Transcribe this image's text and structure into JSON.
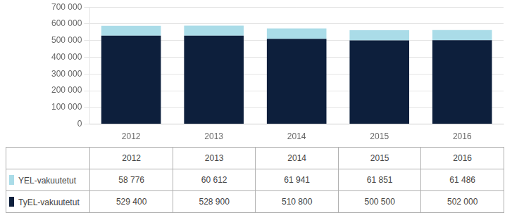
{
  "chart_data": {
    "type": "bar",
    "stacked": true,
    "grid": true,
    "categories": [
      "2012",
      "2013",
      "2014",
      "2015",
      "2016"
    ],
    "series": [
      {
        "name": "TyEL-vakuutetut",
        "color": "#0d1f3c",
        "values": [
          529400,
          528900,
          510800,
          500500,
          502000
        ],
        "value_labels": [
          "529 400",
          "528 900",
          "510 800",
          "500 500",
          "502 000"
        ]
      },
      {
        "name": "YEL-vakuutetut",
        "color": "#aadce8",
        "values": [
          58776,
          60612,
          61941,
          61851,
          61486
        ],
        "value_labels": [
          "58 776",
          "60 612",
          "61 941",
          "61 851",
          "61 486"
        ]
      }
    ],
    "ylim": [
      0,
      700000
    ],
    "yticks": [
      0,
      {
        "value": 100000,
        "label": "100 000"
      },
      {
        "value": 200000,
        "label": "200 000"
      },
      {
        "value": 300000,
        "label": "300 000"
      },
      {
        "value": 400000,
        "label": "400 000"
      },
      {
        "value": 500000,
        "label": "500 000"
      },
      {
        "value": 600000,
        "label": "600 000"
      },
      {
        "value": 700000,
        "label": "700 000"
      }
    ]
  }
}
